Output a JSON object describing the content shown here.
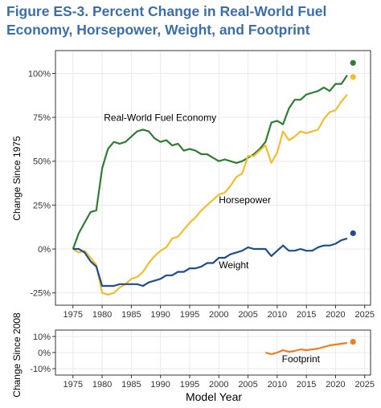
{
  "title": "Figure ES-3. Percent Change in Real-World Fuel Economy, Horsepower, Weight, and Footprint",
  "colors": {
    "fuel_economy": "#2e7d32",
    "horsepower": "#f5bd2c",
    "weight": "#1f4e8c",
    "footprint": "#ef7d1a",
    "grid": "#e9e9e9",
    "title": "#3c6fa6"
  },
  "chart_data": [
    {
      "type": "line",
      "ylabel": "Change Since 1975",
      "xlim": [
        1972,
        2026
      ],
      "ylim": [
        -32,
        113
      ],
      "x_ticks": [
        1975,
        1980,
        1985,
        1990,
        1995,
        2000,
        2005,
        2010,
        2015,
        2020,
        2025
      ],
      "x_tick_labels": [
        "1975",
        "1980",
        "1985",
        "1990",
        "1995",
        "2000",
        "2005",
        "2010",
        "2015",
        "2020",
        "2025"
      ],
      "y_ticks": [
        -25,
        0,
        25,
        50,
        75,
        100
      ],
      "y_tick_labels": [
        "-25%",
        "0%",
        "25%",
        "50%",
        "75%",
        "100%"
      ],
      "grid": true,
      "series": [
        {
          "name": "Real-World Fuel Economy",
          "color_key": "fuel_economy",
          "x": [
            1975,
            1976,
            1977,
            1978,
            1979,
            1980,
            1981,
            1982,
            1983,
            1984,
            1985,
            1986,
            1987,
            1988,
            1989,
            1990,
            1991,
            1992,
            1993,
            1994,
            1995,
            1996,
            1997,
            1998,
            1999,
            2000,
            2001,
            2002,
            2003,
            2004,
            2005,
            2006,
            2007,
            2008,
            2009,
            2010,
            2011,
            2012,
            2013,
            2014,
            2015,
            2016,
            2017,
            2018,
            2019,
            2020,
            2021,
            2022
          ],
          "y": [
            0,
            9,
            15,
            21,
            22,
            46,
            57,
            61,
            60,
            61,
            64,
            67,
            68,
            67,
            63,
            61,
            62,
            59,
            60,
            56,
            57,
            56,
            54,
            54,
            52,
            50,
            51,
            50,
            49,
            50,
            52,
            54,
            57,
            61,
            72,
            73,
            71,
            80,
            85,
            85,
            88,
            89,
            90,
            92,
            90,
            94,
            94,
            99
          ],
          "projection": {
            "x": 2023,
            "y": 106
          }
        },
        {
          "name": "Horsepower",
          "color_key": "horsepower",
          "x": [
            1975,
            1976,
            1977,
            1978,
            1979,
            1980,
            1981,
            1982,
            1983,
            1984,
            1985,
            1986,
            1987,
            1988,
            1989,
            1990,
            1991,
            1992,
            1993,
            1994,
            1995,
            1996,
            1997,
            1998,
            1999,
            2000,
            2001,
            2002,
            2003,
            2004,
            2005,
            2006,
            2007,
            2008,
            2009,
            2010,
            2011,
            2012,
            2013,
            2014,
            2015,
            2016,
            2017,
            2018,
            2019,
            2020,
            2021,
            2022
          ],
          "y": [
            0,
            -2,
            -1,
            -5,
            -9,
            -25,
            -26,
            -25,
            -22,
            -20,
            -17,
            -16,
            -13,
            -8,
            -4,
            -1,
            1,
            6,
            7,
            11,
            15,
            18,
            22,
            25,
            28,
            31,
            32,
            36,
            41,
            43,
            53,
            53,
            56,
            59,
            49,
            55,
            67,
            62,
            64,
            67,
            66,
            67,
            68,
            74,
            78,
            79,
            84,
            88
          ],
          "projection": {
            "x": 2023,
            "y": 98
          }
        },
        {
          "name": "Weight",
          "color_key": "weight",
          "x": [
            1975,
            1976,
            1977,
            1978,
            1979,
            1980,
            1981,
            1982,
            1983,
            1984,
            1985,
            1986,
            1987,
            1988,
            1989,
            1990,
            1991,
            1992,
            1993,
            1994,
            1995,
            1996,
            1997,
            1998,
            1999,
            2000,
            2001,
            2002,
            2003,
            2004,
            2005,
            2006,
            2007,
            2008,
            2009,
            2010,
            2011,
            2012,
            2013,
            2014,
            2015,
            2016,
            2017,
            2018,
            2019,
            2020,
            2021,
            2022
          ],
          "y": [
            0,
            0,
            -2,
            -7,
            -10,
            -21,
            -21,
            -21,
            -20,
            -20,
            -20,
            -20,
            -21,
            -19,
            -18,
            -17,
            -15,
            -15,
            -13,
            -13,
            -11,
            -11,
            -10,
            -8,
            -8,
            -5,
            -5,
            -3,
            -2,
            -1,
            1,
            0,
            0,
            0,
            -4,
            -1,
            2,
            -1,
            -1,
            0,
            -1,
            -1,
            1,
            2,
            2,
            3,
            5,
            6
          ],
          "projection": {
            "x": 2023,
            "y": 9
          }
        }
      ],
      "annotations": [
        {
          "text": "Real-World Fuel Economy",
          "x": 1980.3,
          "y": 73
        },
        {
          "text": "Horsepower",
          "x": 2000,
          "y": 26
        },
        {
          "text": "Weight",
          "x": 2000,
          "y": -11
        }
      ]
    },
    {
      "type": "line",
      "xlabel": "Model Year",
      "ylabel": "Change Since 2008",
      "xlim": [
        1972,
        2026
      ],
      "ylim": [
        -14,
        14
      ],
      "x_ticks": [
        1975,
        1980,
        1985,
        1990,
        1995,
        2000,
        2005,
        2010,
        2015,
        2020,
        2025
      ],
      "x_tick_labels": [
        "1975",
        "1980",
        "1985",
        "1990",
        "1995",
        "2000",
        "2005",
        "2010",
        "2015",
        "2020",
        "2025"
      ],
      "y_ticks": [
        -10,
        0,
        10
      ],
      "y_tick_labels": [
        "-10%",
        "0%",
        "10%"
      ],
      "grid": true,
      "series": [
        {
          "name": "Footprint",
          "color_key": "footprint",
          "x": [
            2008,
            2009,
            2010,
            2011,
            2012,
            2013,
            2014,
            2015,
            2016,
            2017,
            2018,
            2019,
            2020,
            2021,
            2022
          ],
          "y": [
            0,
            -1,
            0,
            1.5,
            0.5,
            1,
            2,
            1.5,
            2,
            2.5,
            3.5,
            4.5,
            5,
            5.5,
            6
          ],
          "projection": {
            "x": 2023,
            "y": 6.7
          }
        }
      ],
      "annotations": [
        {
          "text": "Footprint",
          "x": 2010.8,
          "y": -6
        }
      ]
    }
  ]
}
